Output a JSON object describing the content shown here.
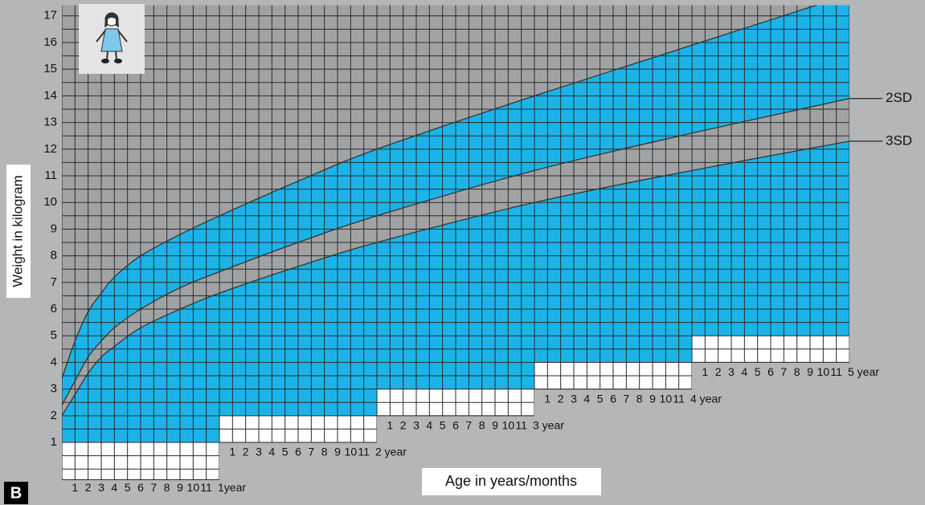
{
  "chart_data": {
    "type": "growth",
    "y_axis_label": "Weight in kilogram",
    "x_axis_label": "Age in years/months",
    "panel_label": "B",
    "x": [
      0,
      1,
      2,
      3,
      4,
      6,
      9,
      12,
      18,
      24,
      36,
      48,
      60
    ],
    "series": [
      {
        "color": "#333333",
        "values": [
          3.4,
          4.8,
          5.9,
          6.6,
          7.2,
          8.0,
          8.8,
          9.5,
          10.8,
          12.0,
          14.0,
          15.9,
          17.8
        ]
      },
      {
        "name": "2SD",
        "color": "#333333",
        "values": [
          2.4,
          3.3,
          4.2,
          4.8,
          5.3,
          6.0,
          6.8,
          7.4,
          8.5,
          9.5,
          11.2,
          12.6,
          13.9
        ]
      },
      {
        "name": "3SD",
        "color": "#333333",
        "values": [
          2.0,
          2.8,
          3.6,
          4.2,
          4.6,
          5.3,
          6.0,
          6.6,
          7.6,
          8.5,
          10.0,
          11.2,
          12.3
        ]
      }
    ],
    "month_labels": [
      "1",
      "2",
      "3",
      "4",
      "5",
      "6",
      "7",
      "8",
      "9",
      "10",
      "11"
    ],
    "year_labels": [
      "1year",
      "2 year",
      "3 year",
      "4 year",
      "5 year"
    ],
    "xlim": [
      0,
      60
    ],
    "ylim": [
      -0.4,
      17.4
    ],
    "yticks": [
      1,
      2,
      3,
      4,
      5,
      6,
      7,
      8,
      9,
      10,
      11,
      12,
      13,
      14,
      15,
      16,
      17
    ],
    "fill_color": "#1cb4e8"
  }
}
